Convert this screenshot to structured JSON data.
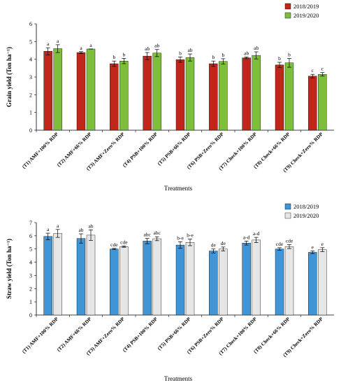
{
  "colors": {
    "top_2018": "#C1261A",
    "top_2019": "#7DBE3A",
    "bottom_2018": "#3F95D6",
    "bottom_2019": "#E6E6E6"
  },
  "chart_data": [
    {
      "type": "bar",
      "ylabel": "Grain yield (Ton ha⁻¹)",
      "xlabel": "Treatments",
      "ylim": [
        0,
        6
      ],
      "yticks": [
        "0",
        "1",
        "2",
        "3",
        "4",
        "5",
        "6"
      ],
      "legend_position": "top-right",
      "categories": [
        "(T1) AMF+100% RDP",
        "(T2) AMF+66% RDP",
        "(T3) AMF+Zero% RDP",
        "(T4) PSB+100% RDP",
        "(T5) PSB+66% RDP",
        "(T6) PSB+Zero% RDP",
        "(T7) Check+100% RDP",
        "(T8) Check+66% RDP",
        "(T9) Check+Zero% RDP"
      ],
      "series": [
        {
          "name": "2018/2019",
          "values": [
            4.45,
            4.38,
            3.75,
            4.18,
            3.98,
            3.75,
            4.08,
            3.68,
            3.05
          ],
          "errors": [
            0.2,
            0.05,
            0.15,
            0.2,
            0.15,
            0.15,
            0.05,
            0.15,
            0.1
          ],
          "letters": [
            "a",
            "a",
            "b",
            "ab",
            "b",
            "b",
            "ab",
            "b",
            "c"
          ]
        },
        {
          "name": "2019/2020",
          "values": [
            4.6,
            4.58,
            3.9,
            4.35,
            4.1,
            3.88,
            4.22,
            3.8,
            3.15
          ],
          "errors": [
            0.22,
            0.0,
            0.15,
            0.2,
            0.2,
            0.15,
            0.2,
            0.25,
            0.1
          ],
          "letters": [
            "a",
            "a",
            "b",
            "ab",
            "ab",
            "b",
            "ab",
            "b",
            "c"
          ]
        }
      ]
    },
    {
      "type": "bar",
      "ylabel": "Straw yield (Ton ha⁻¹)",
      "xlabel": "Treatments",
      "ylim": [
        0,
        7
      ],
      "yticks": [
        "0",
        "1",
        "2",
        "3",
        "4",
        "5",
        "6",
        "7"
      ],
      "legend_position": "top-right",
      "categories": [
        "(T1) AMF+100% RDP",
        "(T2) AMF+66% RDP",
        "(T3) AMF+Zero% RDP",
        "(T4) PSB+100% RDP",
        "(T5) PSB+66% RDP",
        "(T6) PSB+Zero% RDP",
        "(T7) Check+100% RDP",
        "(T8) Check+66% RDP",
        "(T9) Check+Zero% RDP"
      ],
      "series": [
        {
          "name": "2018/2019",
          "values": [
            5.95,
            5.8,
            5.0,
            5.6,
            5.3,
            4.85,
            5.45,
            5.0,
            4.75
          ],
          "errors": [
            0.25,
            0.35,
            0.05,
            0.2,
            0.25,
            0.15,
            0.15,
            0.1,
            0.1
          ],
          "letters": [
            "a",
            "ab",
            "cde",
            "abc",
            "b-e",
            "de",
            "a-d",
            "cde",
            "e"
          ]
        },
        {
          "name": "2019/2020",
          "values": [
            6.18,
            6.05,
            5.18,
            5.78,
            5.5,
            5.0,
            5.68,
            5.18,
            4.95
          ],
          "errors": [
            0.3,
            0.4,
            0.05,
            0.15,
            0.25,
            0.15,
            0.2,
            0.15,
            0.15
          ],
          "letters": [
            "a",
            "ab",
            "cde",
            "abc",
            "b-e",
            "de",
            "a-d",
            "cde",
            "e"
          ]
        }
      ]
    }
  ]
}
